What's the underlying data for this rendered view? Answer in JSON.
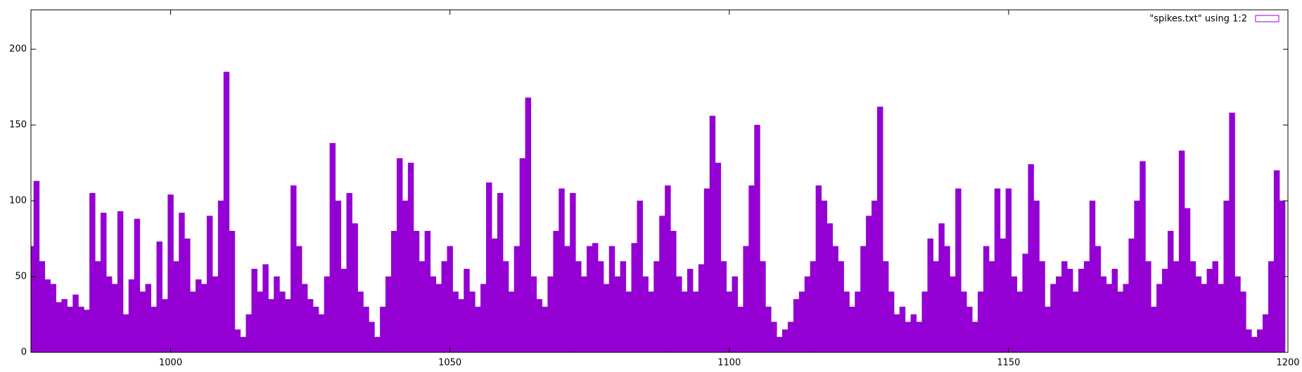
{
  "chart_data": {
    "type": "bar",
    "legend_label": "\"spikes.txt\" using 1:2",
    "color": "#9400d3",
    "legend_position": "top-right",
    "grid": false,
    "xlim": [
      975,
      1200
    ],
    "ylim": [
      0,
      226
    ],
    "xticks": [
      1000,
      1050,
      1100,
      1150,
      1200
    ],
    "yticks": [
      0,
      50,
      100,
      150,
      200
    ],
    "x": [
      975,
      976,
      977,
      978,
      979,
      980,
      981,
      982,
      983,
      984,
      985,
      986,
      987,
      988,
      989,
      990,
      991,
      992,
      993,
      994,
      995,
      996,
      997,
      998,
      999,
      1000,
      1001,
      1002,
      1003,
      1004,
      1005,
      1006,
      1007,
      1008,
      1009,
      1010,
      1011,
      1012,
      1013,
      1014,
      1015,
      1016,
      1017,
      1018,
      1019,
      1020,
      1021,
      1022,
      1023,
      1024,
      1025,
      1026,
      1027,
      1028,
      1029,
      1030,
      1031,
      1032,
      1033,
      1034,
      1035,
      1036,
      1037,
      1038,
      1039,
      1040,
      1041,
      1042,
      1043,
      1044,
      1045,
      1046,
      1047,
      1048,
      1049,
      1050,
      1051,
      1052,
      1053,
      1054,
      1055,
      1056,
      1057,
      1058,
      1059,
      1060,
      1061,
      1062,
      1063,
      1064,
      1065,
      1066,
      1067,
      1068,
      1069,
      1070,
      1071,
      1072,
      1073,
      1074,
      1075,
      1076,
      1077,
      1078,
      1079,
      1080,
      1081,
      1082,
      1083,
      1084,
      1085,
      1086,
      1087,
      1088,
      1089,
      1090,
      1091,
      1092,
      1093,
      1094,
      1095,
      1096,
      1097,
      1098,
      1099,
      1100,
      1101,
      1102,
      1103,
      1104,
      1105,
      1106,
      1107,
      1108,
      1109,
      1110,
      1111,
      1112,
      1113,
      1114,
      1115,
      1116,
      1117,
      1118,
      1119,
      1120,
      1121,
      1122,
      1123,
      1124,
      1125,
      1126,
      1127,
      1128,
      1129,
      1130,
      1131,
      1132,
      1133,
      1134,
      1135,
      1136,
      1137,
      1138,
      1139,
      1140,
      1141,
      1142,
      1143,
      1144,
      1145,
      1146,
      1147,
      1148,
      1149,
      1150,
      1151,
      1152,
      1153,
      1154,
      1155,
      1156,
      1157,
      1158,
      1159,
      1160,
      1161,
      1162,
      1163,
      1164,
      1165,
      1166,
      1167,
      1168,
      1169,
      1170,
      1171,
      1172,
      1173,
      1174,
      1175,
      1176,
      1177,
      1178,
      1179,
      1180,
      1181,
      1182,
      1183,
      1184,
      1185,
      1186,
      1187,
      1188,
      1189,
      1190,
      1191,
      1192,
      1193,
      1194,
      1195,
      1196,
      1197,
      1198,
      1199
    ],
    "values": [
      70,
      113,
      60,
      48,
      45,
      33,
      35,
      30,
      38,
      30,
      28,
      105,
      60,
      92,
      50,
      45,
      93,
      25,
      48,
      88,
      40,
      45,
      30,
      73,
      35,
      104,
      60,
      92,
      75,
      40,
      48,
      45,
      90,
      50,
      100,
      185,
      80,
      15,
      10,
      25,
      55,
      40,
      58,
      35,
      50,
      40,
      35,
      110,
      70,
      45,
      35,
      30,
      25,
      50,
      138,
      100,
      55,
      105,
      85,
      40,
      30,
      20,
      10,
      30,
      50,
      80,
      128,
      100,
      125,
      80,
      60,
      80,
      50,
      45,
      60,
      70,
      40,
      35,
      55,
      40,
      30,
      45,
      112,
      75,
      105,
      60,
      40,
      70,
      128,
      168,
      50,
      35,
      30,
      50,
      80,
      108,
      70,
      105,
      60,
      50,
      70,
      72,
      60,
      45,
      70,
      50,
      60,
      40,
      72,
      100,
      50,
      40,
      60,
      90,
      110,
      80,
      50,
      40,
      55,
      40,
      58,
      108,
      156,
      125,
      60,
      40,
      50,
      30,
      70,
      110,
      150,
      60,
      30,
      20,
      10,
      15,
      20,
      35,
      40,
      50,
      60,
      110,
      100,
      85,
      70,
      60,
      40,
      30,
      40,
      70,
      90,
      100,
      162,
      60,
      40,
      25,
      30,
      20,
      25,
      20,
      40,
      75,
      60,
      85,
      70,
      50,
      108,
      40,
      30,
      20,
      40,
      70,
      60,
      108,
      75,
      108,
      50,
      40,
      65,
      124,
      100,
      60,
      30,
      45,
      50,
      60,
      55,
      40,
      55,
      60,
      100,
      70,
      50,
      45,
      55,
      40,
      45,
      75,
      100,
      126,
      60,
      30,
      45,
      55,
      80,
      60,
      133,
      95,
      60,
      50,
      45,
      55,
      60,
      45,
      100,
      158,
      50,
      40,
      15,
      10,
      15,
      25,
      60,
      120,
      100
    ]
  }
}
